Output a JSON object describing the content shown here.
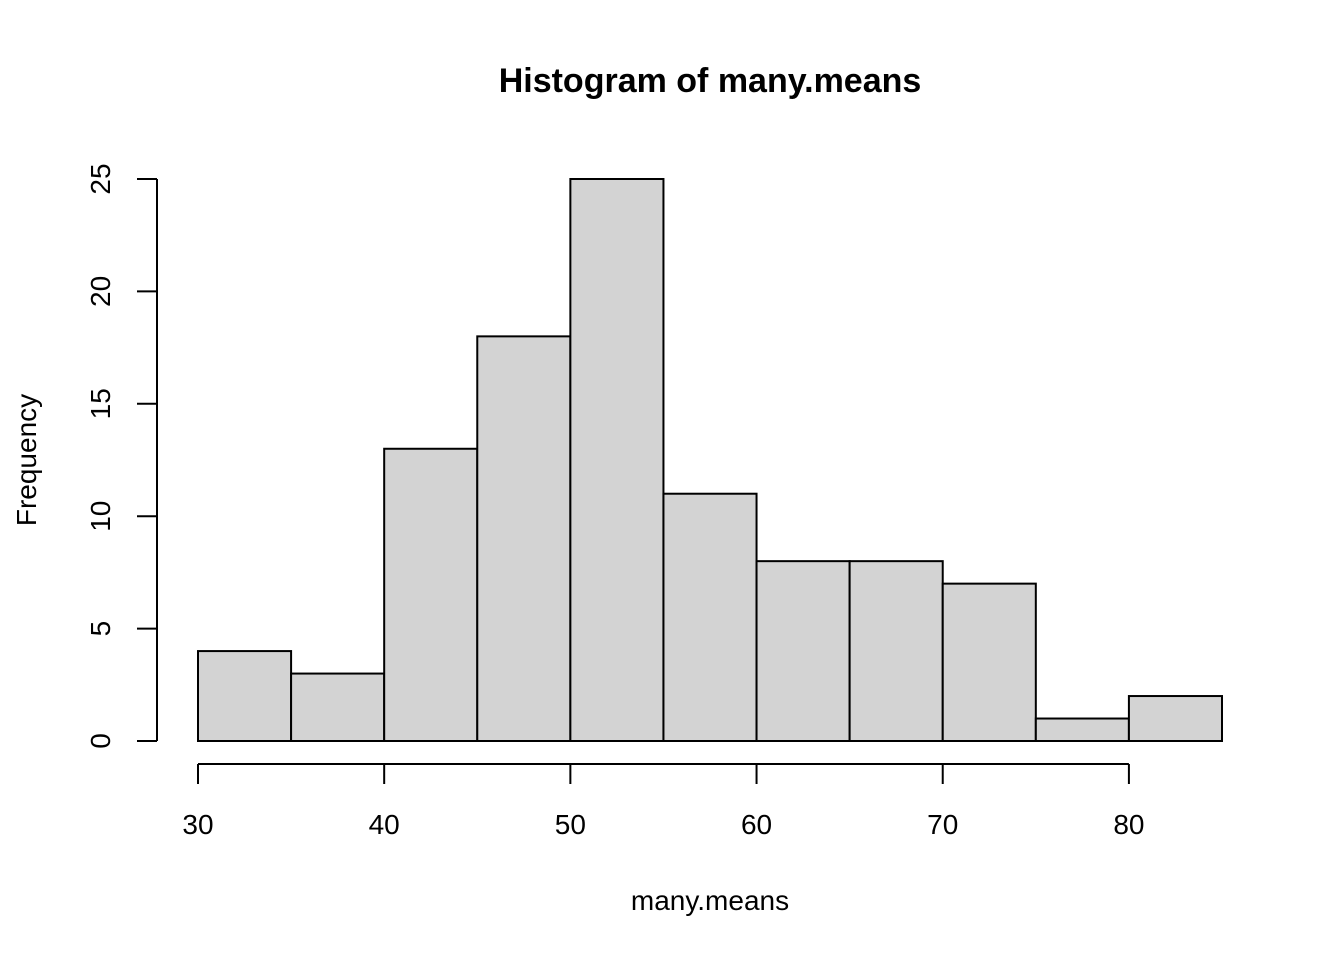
{
  "chart_data": {
    "type": "bar",
    "title": "Histogram of many.means",
    "xlabel": "many.means",
    "ylabel": "Frequency",
    "bin_edges": [
      30,
      35,
      40,
      45,
      50,
      55,
      60,
      65,
      70,
      75,
      80,
      85
    ],
    "values": [
      4,
      3,
      13,
      18,
      25,
      11,
      8,
      8,
      7,
      1,
      2
    ],
    "xlim": [
      30,
      85
    ],
    "ylim": [
      0,
      25
    ],
    "xticks": [
      30,
      40,
      50,
      60,
      70,
      80
    ],
    "yticks": [
      0,
      5,
      10,
      15,
      20,
      25
    ],
    "grid": false,
    "colors": {
      "bar_fill": "#d3d3d3",
      "bar_stroke": "#000000"
    }
  }
}
